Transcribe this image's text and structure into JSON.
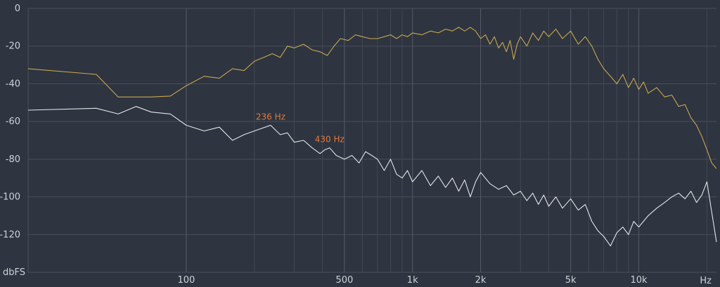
{
  "chart_data": {
    "type": "line",
    "title": "",
    "xlabel": "Hz",
    "ylabel": "dbFS",
    "x_scale": "log",
    "xlim": [
      20,
      22050
    ],
    "ylim": [
      -140,
      0
    ],
    "grid": true,
    "y_ticks": [
      0,
      -20,
      -40,
      -60,
      -80,
      -100,
      -120
    ],
    "y_tick_labels": [
      "0",
      "-20",
      "-40",
      "-60",
      "-80",
      "-100",
      "-120"
    ],
    "x_ticks_labeled": [
      {
        "value": 100,
        "label": "100"
      },
      {
        "value": 500,
        "label": "500"
      },
      {
        "value": 1000,
        "label": "1k"
      },
      {
        "value": 2000,
        "label": "2k"
      },
      {
        "value": 5000,
        "label": "5k"
      },
      {
        "value": 10000,
        "label": "10k"
      }
    ],
    "x_minor_ticks": [
      200,
      300,
      400,
      600,
      700,
      800,
      900,
      3000,
      4000,
      6000,
      7000,
      8000,
      9000,
      20000
    ],
    "series": [
      {
        "color": "#c9a74f",
        "points": [
          [
            20,
            -32
          ],
          [
            40,
            -35
          ],
          [
            50,
            -47
          ],
          [
            60,
            -47
          ],
          [
            70,
            -47
          ],
          [
            85,
            -46.5
          ],
          [
            100,
            -41
          ],
          [
            120,
            -36
          ],
          [
            140,
            -37
          ],
          [
            160,
            -32
          ],
          [
            180,
            -33
          ],
          [
            200,
            -28
          ],
          [
            220,
            -26
          ],
          [
            240,
            -24
          ],
          [
            260,
            -26
          ],
          [
            280,
            -20
          ],
          [
            300,
            -21
          ],
          [
            330,
            -19
          ],
          [
            360,
            -22
          ],
          [
            390,
            -23
          ],
          [
            420,
            -25
          ],
          [
            450,
            -20
          ],
          [
            480,
            -16
          ],
          [
            520,
            -17
          ],
          [
            560,
            -14
          ],
          [
            600,
            -15
          ],
          [
            650,
            -16
          ],
          [
            700,
            -16
          ],
          [
            750,
            -15
          ],
          [
            800,
            -14
          ],
          [
            850,
            -16
          ],
          [
            900,
            -14
          ],
          [
            950,
            -15
          ],
          [
            1000,
            -13
          ],
          [
            1100,
            -14
          ],
          [
            1200,
            -12
          ],
          [
            1300,
            -13
          ],
          [
            1400,
            -11
          ],
          [
            1500,
            -12
          ],
          [
            1600,
            -10
          ],
          [
            1700,
            -12
          ],
          [
            1800,
            -10
          ],
          [
            1900,
            -12
          ],
          [
            2000,
            -16
          ],
          [
            2100,
            -14
          ],
          [
            2200,
            -19
          ],
          [
            2300,
            -15
          ],
          [
            2400,
            -21
          ],
          [
            2500,
            -18
          ],
          [
            2600,
            -23
          ],
          [
            2700,
            -17
          ],
          [
            2800,
            -27
          ],
          [
            2900,
            -19
          ],
          [
            3000,
            -15
          ],
          [
            3200,
            -20
          ],
          [
            3400,
            -13
          ],
          [
            3600,
            -17
          ],
          [
            3800,
            -12
          ],
          [
            4000,
            -15
          ],
          [
            4300,
            -11
          ],
          [
            4600,
            -16
          ],
          [
            5000,
            -12
          ],
          [
            5400,
            -19
          ],
          [
            5800,
            -15
          ],
          [
            6200,
            -20
          ],
          [
            6600,
            -27
          ],
          [
            7000,
            -32
          ],
          [
            7500,
            -36
          ],
          [
            8000,
            -40
          ],
          [
            8500,
            -35
          ],
          [
            9000,
            -42
          ],
          [
            9500,
            -37
          ],
          [
            10000,
            -43
          ],
          [
            10500,
            -39
          ],
          [
            11000,
            -45
          ],
          [
            12000,
            -42
          ],
          [
            13000,
            -47
          ],
          [
            14000,
            -46
          ],
          [
            15000,
            -52
          ],
          [
            16000,
            -51
          ],
          [
            17000,
            -58
          ],
          [
            18000,
            -62
          ],
          [
            19000,
            -68
          ],
          [
            20000,
            -75
          ],
          [
            21000,
            -82
          ],
          [
            22050,
            -85
          ]
        ]
      },
      {
        "color": "#e3e6ea",
        "points": [
          [
            20,
            -54
          ],
          [
            40,
            -53
          ],
          [
            50,
            -56
          ],
          [
            60,
            -52
          ],
          [
            70,
            -55
          ],
          [
            85,
            -56
          ],
          [
            100,
            -62
          ],
          [
            120,
            -65
          ],
          [
            140,
            -63
          ],
          [
            160,
            -70
          ],
          [
            180,
            -67
          ],
          [
            200,
            -65
          ],
          [
            236,
            -62
          ],
          [
            260,
            -67
          ],
          [
            280,
            -66
          ],
          [
            300,
            -71
          ],
          [
            330,
            -70
          ],
          [
            360,
            -74
          ],
          [
            390,
            -77
          ],
          [
            410,
            -75
          ],
          [
            430,
            -74
          ],
          [
            460,
            -78
          ],
          [
            500,
            -80
          ],
          [
            540,
            -78
          ],
          [
            580,
            -82
          ],
          [
            620,
            -76
          ],
          [
            660,
            -78
          ],
          [
            700,
            -80
          ],
          [
            750,
            -86
          ],
          [
            800,
            -80
          ],
          [
            850,
            -88
          ],
          [
            900,
            -90
          ],
          [
            950,
            -86
          ],
          [
            1000,
            -92
          ],
          [
            1100,
            -86
          ],
          [
            1200,
            -94
          ],
          [
            1300,
            -89
          ],
          [
            1400,
            -95
          ],
          [
            1500,
            -90
          ],
          [
            1600,
            -97
          ],
          [
            1700,
            -91
          ],
          [
            1800,
            -100
          ],
          [
            1900,
            -92
          ],
          [
            2000,
            -87
          ],
          [
            2200,
            -93
          ],
          [
            2400,
            -96
          ],
          [
            2600,
            -94
          ],
          [
            2800,
            -99
          ],
          [
            3000,
            -97
          ],
          [
            3200,
            -102
          ],
          [
            3400,
            -98
          ],
          [
            3600,
            -104
          ],
          [
            3800,
            -99
          ],
          [
            4000,
            -105
          ],
          [
            4300,
            -100
          ],
          [
            4600,
            -106
          ],
          [
            5000,
            -101
          ],
          [
            5400,
            -107
          ],
          [
            5800,
            -104
          ],
          [
            6200,
            -113
          ],
          [
            6600,
            -118
          ],
          [
            7000,
            -121
          ],
          [
            7500,
            -126
          ],
          [
            8000,
            -119
          ],
          [
            8500,
            -116
          ],
          [
            9000,
            -120
          ],
          [
            9500,
            -113
          ],
          [
            10000,
            -116
          ],
          [
            11000,
            -110
          ],
          [
            12000,
            -106
          ],
          [
            13000,
            -103
          ],
          [
            14000,
            -100
          ],
          [
            15000,
            -98
          ],
          [
            16000,
            -101
          ],
          [
            17000,
            -97
          ],
          [
            18000,
            -103
          ],
          [
            19000,
            -99
          ],
          [
            20000,
            -92
          ],
          [
            21000,
            -108
          ],
          [
            22050,
            -124
          ]
        ]
      }
    ],
    "annotations": [
      {
        "text": "236 Hz",
        "x": 236,
        "y": -62,
        "color": "#e07a3a"
      },
      {
        "text": "430 Hz",
        "x": 430,
        "y": -74,
        "color": "#e07a3a"
      }
    ]
  }
}
